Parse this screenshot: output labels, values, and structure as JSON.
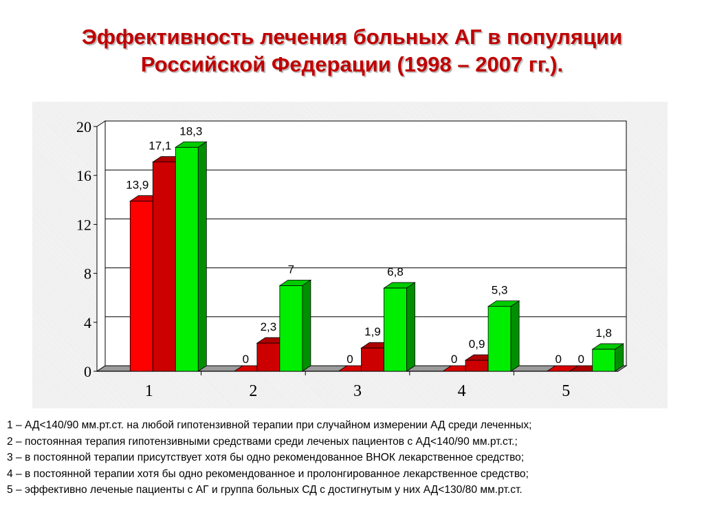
{
  "title": "Эффективность лечения больных АГ в популяции Российской Федерации (1998 – 2007 гг.).",
  "chart_data": {
    "type": "bar",
    "categories": [
      "1",
      "2",
      "3",
      "4",
      "5"
    ],
    "series": [
      {
        "values": [
          13.9,
          0,
          0,
          0,
          0
        ],
        "labels": [
          "13,9",
          "0",
          "0",
          "0",
          "0"
        ],
        "color": "#ff0000"
      },
      {
        "values": [
          17.1,
          2.3,
          1.9,
          0.9,
          0
        ],
        "labels": [
          "17,1",
          "2,3",
          "1,9",
          "0,9",
          "0"
        ],
        "color": "#cc0000"
      },
      {
        "values": [
          18.3,
          7,
          6.8,
          5.3,
          1.8
        ],
        "labels": [
          "18,3",
          "7",
          "6,8",
          "5,3",
          "1,8"
        ],
        "color": "#00ee00"
      }
    ],
    "yticks": [
      "0",
      "4",
      "8",
      "12",
      "16",
      "20"
    ],
    "ylim": [
      0,
      20
    ],
    "grid": true,
    "legend": "none"
  },
  "notes": [
    "1 – АД<140/90 мм.рт.ст. на любой гипотензивной терапии при случайном измерении АД среди леченных;",
    "2 – постоянная терапия гипотензивными средствами среди леченых пациентов с АД<140/90 мм.рт.ст.;",
    "3 – в постоянной терапии присутствует хотя бы одно рекомендованное ВНОК лекарственное средство;",
    "4 – в постоянной терапии хотя бы одно рекомендованное и пролонгированное лекарственное средство;",
    "5 – эффективно леченые пациенты с АГ и группа больных СД с достигнутым у них АД<130/80 мм.рт.ст."
  ]
}
